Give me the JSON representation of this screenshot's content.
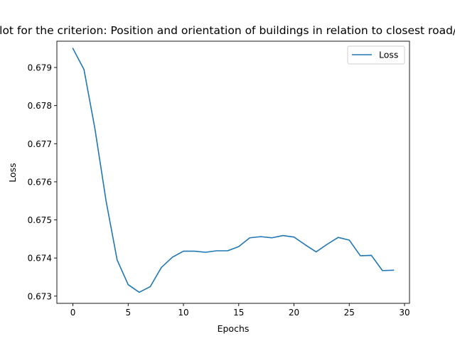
{
  "chart_data": {
    "type": "line",
    "title": "Plot for the criterion: Position and orientation of buildings in relation to closest road/s",
    "xlabel": "Epochs",
    "ylabel": "Loss",
    "xlim": [
      -1.45,
      30.45
    ],
    "ylim": [
      0.67281,
      0.67969
    ],
    "xticks": [
      0,
      5,
      10,
      15,
      20,
      25,
      30
    ],
    "yticks": [
      0.673,
      0.674,
      0.675,
      0.676,
      0.677,
      0.678,
      0.679
    ],
    "ytick_labels": [
      "0.673",
      "0.674",
      "0.675",
      "0.676",
      "0.677",
      "0.678",
      "0.679"
    ],
    "grid": false,
    "legend_position": "top-right",
    "series": [
      {
        "name": "Loss",
        "color": "#1f77b4",
        "x": [
          0,
          1,
          2,
          3,
          4,
          5,
          6,
          7,
          8,
          9,
          10,
          11,
          12,
          13,
          14,
          15,
          16,
          17,
          18,
          19,
          20,
          21,
          22,
          23,
          24,
          25,
          26,
          27,
          28,
          29
        ],
        "values": [
          0.6795,
          0.67895,
          0.67738,
          0.6755,
          0.67395,
          0.6733,
          0.6731,
          0.67325,
          0.67375,
          0.67402,
          0.67418,
          0.67418,
          0.67415,
          0.67419,
          0.67419,
          0.6743,
          0.67453,
          0.67456,
          0.67453,
          0.67459,
          0.67455,
          0.67435,
          0.67416,
          0.67436,
          0.67454,
          0.67447,
          0.67406,
          0.67407,
          0.67367,
          0.67368
        ]
      }
    ]
  }
}
